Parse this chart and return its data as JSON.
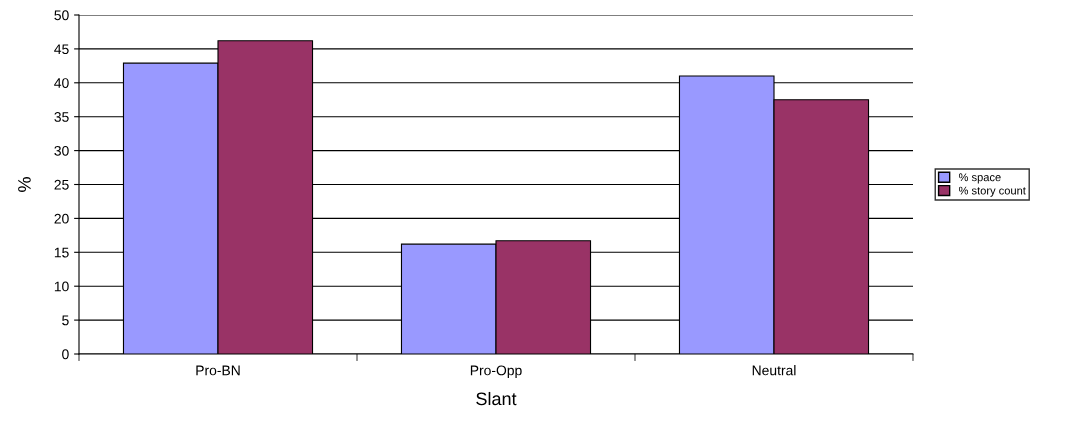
{
  "chart_data": {
    "type": "bar",
    "xlabel": "Slant",
    "ylabel": "%",
    "categories": [
      "Pro-BN",
      "Pro-Opp",
      "Neutral"
    ],
    "series": [
      {
        "name": "% space",
        "color": "#9999ff",
        "values": [
          42.9,
          16.2,
          41.0
        ]
      },
      {
        "name": "% story count",
        "color": "#993366",
        "values": [
          46.2,
          16.7,
          37.5
        ]
      }
    ],
    "ylim": [
      0,
      50
    ],
    "yticks": [
      0,
      5,
      10,
      15,
      20,
      25,
      30,
      35,
      40,
      45,
      50
    ],
    "grid": "y",
    "legend": "right"
  }
}
